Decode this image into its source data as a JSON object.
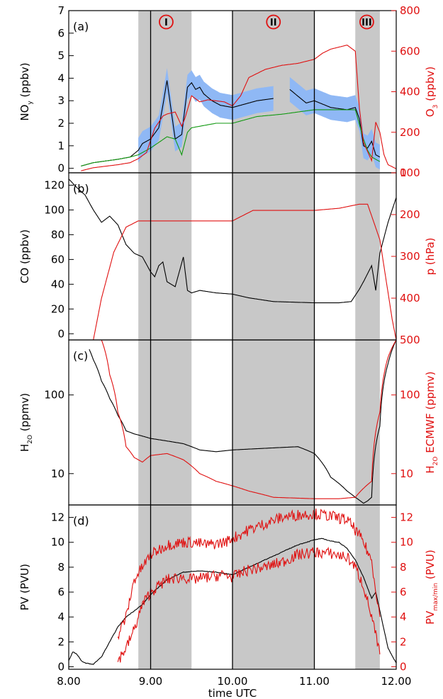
{
  "figure": {
    "xlabel": "time UTC",
    "xticks": [
      "8.00",
      "9.00",
      "10.00",
      "11.00",
      "12.00"
    ],
    "vlines": [
      9.0,
      10.0,
      11.0
    ],
    "phases": [
      {
        "label": "I",
        "x0": 8.85,
        "x1": 9.5,
        "labelx": 9.19
      },
      {
        "label": "II",
        "x0": 10.0,
        "x1": 11.0,
        "labelx": 10.5
      },
      {
        "label": "III",
        "x0": 11.5,
        "x1": 11.8,
        "labelx": 11.64
      }
    ],
    "colors": {
      "black": "#000000",
      "red": "#e01010",
      "green": "#119911",
      "blue_band": "#8fb8f5",
      "shade": "#c8c8c8"
    }
  },
  "chart_data": [
    {
      "type": "line",
      "panel_label": "(a)",
      "xlim": [
        8.0,
        12.0
      ],
      "left_ylabel": "NO_y (ppbv)",
      "left_ylim": [
        -0.2,
        7.0
      ],
      "left_ticks": [
        "0",
        "1",
        "2",
        "3",
        "4",
        "5",
        "6",
        "7"
      ],
      "right_ylabel": "O_3 (ppbv)",
      "right_ylim": [
        0,
        800
      ],
      "right_ticks": [
        "0",
        "200",
        "400",
        "600",
        "800"
      ],
      "series": [
        {
          "axis": "left",
          "color": "black",
          "band": 0.55,
          "band_range": [
            8.85,
            11.85
          ],
          "x": [
            8.15,
            8.3,
            8.4,
            8.6,
            8.75,
            8.85,
            8.9,
            9.0,
            9.1,
            9.15,
            9.2,
            9.3,
            9.38,
            9.45,
            9.5,
            9.55,
            9.6,
            9.65,
            9.75,
            9.85,
            10.0,
            10.2,
            10.3,
            10.5
          ],
          "y": [
            0.1,
            0.25,
            0.3,
            0.4,
            0.5,
            0.8,
            1.1,
            1.3,
            1.8,
            2.8,
            3.9,
            1.3,
            1.5,
            3.6,
            3.8,
            3.5,
            3.6,
            3.3,
            3.0,
            2.8,
            2.7,
            2.9,
            3.0,
            3.1
          ]
        },
        {
          "axis": "left",
          "color": "black",
          "band": 0.55,
          "band_range": [
            10.6,
            11.85
          ],
          "x": [
            10.7,
            10.8,
            10.9,
            11.0,
            11.2,
            11.4,
            11.5,
            11.55,
            11.6,
            11.65,
            11.7,
            11.75,
            11.8
          ],
          "y": [
            3.5,
            3.2,
            2.9,
            3.0,
            2.7,
            2.6,
            2.7,
            2.2,
            1.0,
            0.9,
            1.2,
            0.6,
            0.5
          ]
        },
        {
          "axis": "left",
          "color": "green",
          "x": [
            8.15,
            8.3,
            8.4,
            8.6,
            8.75,
            8.85,
            9.0,
            9.2,
            9.3,
            9.38,
            9.45,
            9.5,
            9.8,
            10.0,
            10.3,
            10.6,
            11.0,
            11.4,
            11.5,
            11.6,
            11.65,
            11.7,
            11.8
          ],
          "y": [
            0.1,
            0.25,
            0.3,
            0.4,
            0.5,
            0.6,
            0.9,
            1.4,
            1.3,
            0.6,
            1.6,
            1.8,
            2.0,
            2.0,
            2.3,
            2.4,
            2.6,
            2.6,
            2.6,
            1.3,
            0.8,
            0.5,
            0.3
          ]
        },
        {
          "axis": "right",
          "color": "red",
          "x": [
            8.15,
            8.3,
            8.4,
            8.6,
            8.75,
            8.85,
            8.95,
            9.05,
            9.15,
            9.2,
            9.3,
            9.38,
            9.42,
            9.5,
            9.6,
            9.7,
            9.9,
            10.0,
            10.1,
            10.2,
            10.4,
            10.6,
            10.8,
            11.0,
            11.1,
            11.2,
            11.4,
            11.5,
            11.55,
            11.6,
            11.7,
            11.75,
            11.8,
            11.85,
            11.9,
            12.0
          ],
          "y": [
            10,
            25,
            30,
            40,
            50,
            70,
            100,
            220,
            280,
            290,
            300,
            230,
            270,
            380,
            350,
            360,
            350,
            330,
            380,
            470,
            510,
            530,
            540,
            560,
            590,
            610,
            630,
            600,
            320,
            150,
            60,
            250,
            200,
            90,
            40,
            20
          ]
        }
      ]
    },
    {
      "type": "line",
      "panel_label": "(b)",
      "xlim": [
        8.0,
        12.0
      ],
      "left_ylabel": "CO (ppbv)",
      "left_ylim": [
        -5,
        130
      ],
      "left_ticks": [
        "0",
        "20",
        "40",
        "60",
        "80",
        "100",
        "120"
      ],
      "right_ylabel": "p (hPa)",
      "right_ylim": [
        500,
        100
      ],
      "right_ticks": [
        "100",
        "200",
        "300",
        "400",
        "500"
      ],
      "series": [
        {
          "axis": "left",
          "color": "black",
          "x": [
            8.0,
            8.1,
            8.2,
            8.3,
            8.4,
            8.5,
            8.6,
            8.7,
            8.8,
            8.9,
            9.0,
            9.05,
            9.1,
            9.15,
            9.2,
            9.3,
            9.35,
            9.4,
            9.45,
            9.5,
            9.6,
            9.8,
            10.0,
            10.2,
            10.5,
            11.0,
            11.3,
            11.45,
            11.55,
            11.6,
            11.7,
            11.75,
            11.8,
            11.9,
            12.0
          ],
          "y": [
            125,
            118,
            112,
            100,
            90,
            95,
            88,
            72,
            65,
            62,
            50,
            46,
            55,
            58,
            42,
            38,
            50,
            62,
            35,
            33,
            35,
            33,
            32,
            29,
            26,
            25,
            25,
            26,
            36,
            42,
            55,
            35,
            65,
            90,
            110
          ]
        },
        {
          "axis": "right",
          "color": "red",
          "x": [
            8.3,
            8.4,
            8.55,
            8.7,
            8.85,
            9.0,
            10.0,
            10.25,
            10.5,
            11.0,
            11.3,
            11.55,
            11.65,
            11.8,
            11.95,
            12.0
          ],
          "y": [
            500,
            400,
            290,
            230,
            215,
            215,
            215,
            190,
            190,
            190,
            185,
            175,
            175,
            260,
            450,
            500
          ]
        }
      ]
    },
    {
      "type": "line",
      "panel_label": "(c)",
      "xlim": [
        8.0,
        12.0
      ],
      "left_ylabel": "H_2O (ppmv)",
      "left_log": true,
      "left_ylim": [
        4,
        500
      ],
      "left_ticks": [
        "10",
        "100"
      ],
      "right_ylabel": "H_2O ECMWF (ppmv)",
      "right_log": true,
      "right_ylim": [
        4,
        500
      ],
      "right_ticks": [
        "10",
        "100"
      ],
      "series": [
        {
          "axis": "left",
          "color": "black",
          "x": [
            8.25,
            8.3,
            8.4,
            8.5,
            8.6,
            8.7,
            8.8,
            9.0,
            9.2,
            9.4,
            9.6,
            9.8,
            10.0,
            10.4,
            10.8,
            11.0,
            11.2,
            11.4,
            11.5,
            11.6,
            11.65,
            11.7,
            11.8,
            11.9,
            12.0
          ],
          "y": [
            380,
            280,
            150,
            90,
            55,
            35,
            32,
            28,
            26,
            24,
            20,
            19,
            20,
            21,
            22,
            18,
            9,
            6,
            5,
            4.2,
            4.5,
            5,
            40,
            250,
            500
          ]
        },
        {
          "axis": "right",
          "color": "red",
          "x": [
            8.4,
            8.5,
            8.6,
            8.7,
            8.8,
            8.9,
            9.0,
            9.2,
            9.4,
            9.6,
            9.8,
            10.0,
            10.2,
            10.5,
            11.0,
            11.3,
            11.5,
            11.7,
            11.8,
            11.9,
            12.0
          ],
          "y": [
            500,
            180,
            60,
            22,
            16,
            14,
            17,
            18,
            15,
            10,
            8,
            7,
            6,
            5,
            4.8,
            4.8,
            5,
            8,
            60,
            300,
            500
          ]
        }
      ]
    },
    {
      "type": "line",
      "panel_label": "(d)",
      "xlim": [
        8.0,
        12.0
      ],
      "left_ylabel": "PV (PVU)",
      "left_ylim": [
        -0.2,
        13.0
      ],
      "left_ticks": [
        "0",
        "2",
        "4",
        "6",
        "8",
        "10",
        "12"
      ],
      "right_ylabel": "PV_max/min (PVU)",
      "right_ylim": [
        -0.2,
        13.0
      ],
      "right_ticks": [
        "0",
        "2",
        "4",
        "6",
        "8",
        "10",
        "12"
      ],
      "series": [
        {
          "axis": "left",
          "color": "black",
          "x": [
            8.0,
            8.05,
            8.1,
            8.15,
            8.2,
            8.3,
            8.4,
            8.5,
            8.6,
            8.7,
            8.8,
            8.9,
            9.0,
            9.2,
            9.4,
            9.6,
            9.8,
            10.0,
            10.2,
            10.4,
            10.6,
            10.8,
            11.0,
            11.1,
            11.2,
            11.3,
            11.4,
            11.5,
            11.6,
            11.7,
            11.75,
            11.8,
            11.9,
            12.0
          ],
          "y": [
            0.5,
            1.2,
            1.0,
            0.5,
            0.3,
            0.2,
            0.8,
            2.0,
            3.2,
            4.0,
            4.5,
            5.0,
            5.8,
            7.0,
            7.6,
            7.7,
            7.6,
            7.4,
            8.0,
            8.6,
            9.2,
            9.8,
            10.2,
            10.3,
            10.1,
            10.0,
            9.5,
            8.6,
            7.2,
            5.5,
            6.0,
            4.5,
            1.5,
            0.3
          ]
        },
        {
          "axis": "right",
          "color": "red",
          "x": [
            8.6,
            8.7,
            8.8,
            8.9,
            9.0,
            9.2,
            9.4,
            9.5,
            9.7,
            9.9,
            10.0,
            10.2,
            10.4,
            10.6,
            10.8,
            11.0,
            11.2,
            11.4,
            11.5,
            11.6,
            11.7,
            11.8
          ],
          "y": [
            2.5,
            4.0,
            7.0,
            8.0,
            9.0,
            9.8,
            10.0,
            10.0,
            9.8,
            10.0,
            10.3,
            11.0,
            11.5,
            12.0,
            12.2,
            12.3,
            12.1,
            11.8,
            11.0,
            10.0,
            8.5,
            4.0
          ]
        },
        {
          "axis": "right",
          "color": "red",
          "x": [
            8.6,
            8.7,
            8.8,
            8.9,
            9.0,
            9.2,
            9.4,
            9.5,
            9.7,
            9.9,
            10.0,
            10.2,
            10.4,
            10.6,
            10.8,
            11.0,
            11.2,
            11.4,
            11.5,
            11.6,
            11.7,
            11.8
          ],
          "y": [
            0.5,
            1.5,
            3.0,
            5.0,
            6.0,
            7.0,
            7.2,
            7.0,
            7.2,
            7.4,
            7.2,
            7.8,
            8.0,
            8.4,
            9.0,
            9.2,
            9.1,
            8.8,
            8.0,
            6.5,
            4.0,
            1.0
          ]
        }
      ]
    }
  ]
}
